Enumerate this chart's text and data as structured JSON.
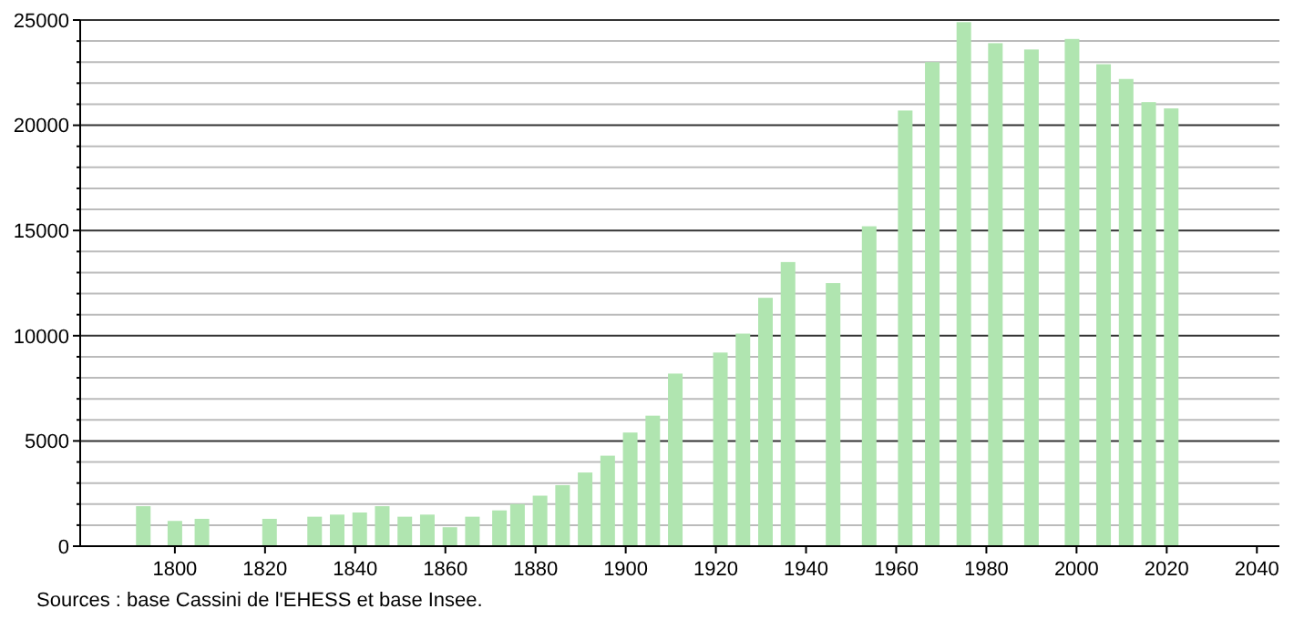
{
  "chart_data": {
    "type": "bar",
    "color": "#b0e5b0",
    "x": [
      1793,
      1800,
      1806,
      1821,
      1831,
      1836,
      1841,
      1846,
      1851,
      1856,
      1861,
      1866,
      1872,
      1876,
      1881,
      1886,
      1891,
      1896,
      1901,
      1906,
      1911,
      1921,
      1926,
      1931,
      1936,
      1946,
      1954,
      1962,
      1968,
      1975,
      1982,
      1990,
      1999,
      2006,
      2011,
      2016,
      2021
    ],
    "values": [
      1900,
      1200,
      1300,
      1300,
      1400,
      1500,
      1600,
      1900,
      1400,
      1500,
      900,
      1400,
      1700,
      2000,
      2400,
      2900,
      3500,
      4300,
      5400,
      6200,
      8200,
      9200,
      10100,
      11800,
      13500,
      12500,
      15200,
      20700,
      23000,
      24900,
      23900,
      23600,
      24100,
      22900,
      22200,
      21100,
      20800
    ],
    "xlim": [
      1779,
      2045
    ],
    "xticks": [
      1800,
      1820,
      1840,
      1860,
      1880,
      1900,
      1920,
      1940,
      1960,
      1980,
      2000,
      2020,
      2040
    ],
    "ylim": [
      0,
      25000
    ],
    "yticks": [
      0,
      {
        "value": 1000,
        "label": null
      },
      {
        "value": 2000,
        "label": null
      },
      {
        "value": 3000,
        "label": null
      },
      {
        "value": 4000,
        "label": null
      },
      5000,
      {
        "value": 6000,
        "label": null
      },
      {
        "value": 7000,
        "label": null
      },
      {
        "value": 8000,
        "label": null
      },
      {
        "value": 9000,
        "label": null
      },
      10000,
      {
        "value": 11000,
        "label": null
      },
      {
        "value": 12000,
        "label": null
      },
      {
        "value": 13000,
        "label": null
      },
      {
        "value": 14000,
        "label": null
      },
      15000,
      {
        "value": 16000,
        "label": null
      },
      {
        "value": 17000,
        "label": null
      },
      {
        "value": 18000,
        "label": null
      },
      {
        "value": 19000,
        "label": null
      },
      20000,
      {
        "value": 21000,
        "label": null
      },
      {
        "value": 22000,
        "label": null
      },
      {
        "value": 23000,
        "label": null
      },
      {
        "value": 24000,
        "label": null
      },
      25000
    ],
    "grid": "y",
    "annotations": [
      "Sources : base Cassini de l'EHESS et base Insee."
    ]
  }
}
